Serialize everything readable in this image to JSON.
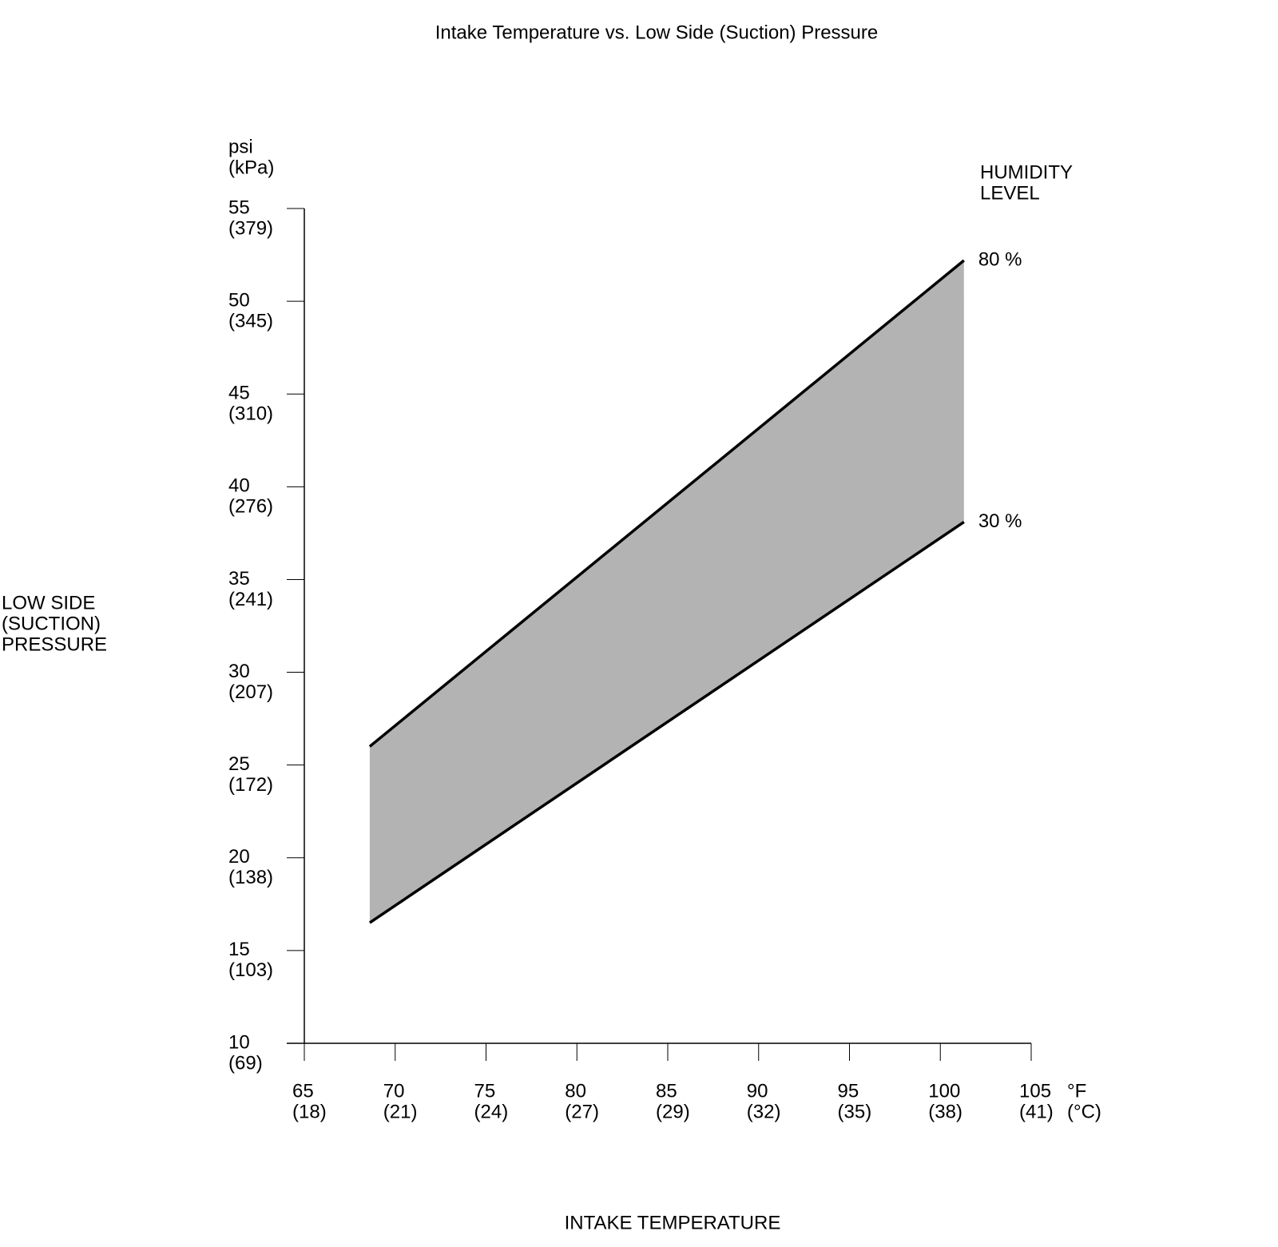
{
  "chart_data": {
    "type": "line",
    "title": "Intake Temperature vs. Low Side (Suction) Pressure",
    "x_label": "INTAKE TEMPERATURE",
    "y_label": [
      "LOW SIDE",
      "(SUCTION)",
      "PRESSURE"
    ],
    "y_units": [
      "psi",
      "(kPa)"
    ],
    "x_units": [
      "°F",
      "(°C)"
    ],
    "legend_title": [
      "HUMIDITY",
      "LEVEL"
    ],
    "x": [
      68.6,
      101.3
    ],
    "series": [
      {
        "name": "80 %",
        "color": "#000000",
        "values": [
          26.0,
          52.2
        ]
      },
      {
        "name": "30 %",
        "color": "#000000",
        "values": [
          16.5,
          38.1
        ]
      }
    ],
    "band_color": "#b3b3b3",
    "xlim": [
      65,
      105
    ],
    "xticks": [
      65,
      70,
      75,
      80,
      85,
      90,
      95,
      100,
      105
    ],
    "x_secondary_labels": [
      "(18)",
      "(21)",
      "(24)",
      "(27)",
      "(29)",
      "(32)",
      "(35)",
      "(38)",
      "(41)"
    ],
    "ylim": [
      10,
      55
    ],
    "yticks": [
      10,
      15,
      20,
      25,
      30,
      35,
      40,
      45,
      50,
      55
    ],
    "y_secondary_labels": [
      "(69)",
      "(103)",
      "(138)",
      "(172)",
      "(207)",
      "(241)",
      "(276)",
      "(310)",
      "(345)",
      "(379)"
    ]
  }
}
